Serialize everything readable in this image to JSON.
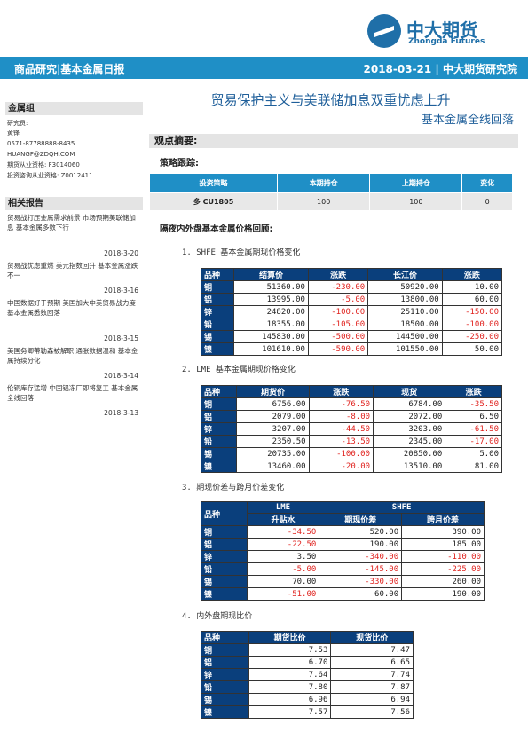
{
  "brand": {
    "cn": "中大期货",
    "en": "Zhongda Futures"
  },
  "header": {
    "left": "商品研究|基本金属日报",
    "right": "2018-03-21 | 中大期货研究院"
  },
  "sidebar": {
    "group_title": "金属组",
    "researcher_label": "研究员:",
    "researcher_name": "黄锋",
    "phone": "0571-87788888-8435",
    "email": "HUANGF@ZDQH.COM",
    "license1": "期货从业资格: F3014060",
    "license2": "投资咨询从业资格: Z0012411",
    "related_title": "相关报告",
    "reports": [
      {
        "title": "贸易战打压金属需求前景 市场预期美联储加息 基本金属多数下行",
        "date": "2018-3-20"
      },
      {
        "title": "贸易战忧虑重燃 美元指数回升 基本金属涨跌不一",
        "date": "2018-3-16"
      },
      {
        "title": "中国数据好于预期 美国加大中美贸易战力度 基本金属悉数回落",
        "date": "2018-3-15"
      },
      {
        "title": "美国务卿蒂勒森被解职 通胀数据温和 基本金属持续分化",
        "date": "2018-3-14"
      },
      {
        "title": "伦铜库存猛增 中国铝冻厂即将复工 基本金属全线回落",
        "date": "2018-3-13"
      }
    ]
  },
  "main": {
    "title": "贸易保护主义与美联储加息双重忧虑上升",
    "subtitle": "基本金属全线回落",
    "section": "观点摘要:",
    "strategy_label": "策略跟踪:",
    "strategy_table": {
      "headers": [
        "投资策略",
        "本期持仓",
        "上期持仓",
        "变化"
      ],
      "rows": [
        [
          "多 CU1805",
          "100",
          "100",
          "0"
        ]
      ]
    },
    "review_label": "隔夜内外盘基本金属价格回顾:",
    "t1": {
      "heading": "1.  SHFE 基本金属期现价格变化",
      "headers": [
        "品种",
        "结算价",
        "涨跌",
        "长江价",
        "涨跌"
      ],
      "rows": [
        [
          "铜",
          "51360.00",
          "-230.00",
          "50920.00",
          "10.00"
        ],
        [
          "铝",
          "13995.00",
          "-5.00",
          "13800.00",
          "60.00"
        ],
        [
          "锌",
          "24820.00",
          "-100.00",
          "25110.00",
          "-150.00"
        ],
        [
          "铅",
          "18355.00",
          "-105.00",
          "18500.00",
          "-100.00"
        ],
        [
          "锡",
          "145830.00",
          "-500.00",
          "144500.00",
          "-250.00"
        ],
        [
          "镍",
          "101610.00",
          "-590.00",
          "101550.00",
          "50.00"
        ]
      ]
    },
    "t2": {
      "heading": "2.  LME  基本金属期现价格变化",
      "headers": [
        "品种",
        "期货价",
        "涨跌",
        "现货",
        "涨跌"
      ],
      "rows": [
        [
          "铜",
          "6756.00",
          "-76.50",
          "6784.00",
          "-35.50"
        ],
        [
          "铝",
          "2079.00",
          "-8.00",
          "2072.00",
          "6.50"
        ],
        [
          "锌",
          "3207.00",
          "-44.50",
          "3203.00",
          "-61.50"
        ],
        [
          "铅",
          "2350.50",
          "-13.50",
          "2345.00",
          "-17.00"
        ],
        [
          "锡",
          "20735.00",
          "-100.00",
          "20850.00",
          "5.00"
        ],
        [
          "镍",
          "13460.00",
          "-20.00",
          "13510.00",
          "81.00"
        ]
      ]
    },
    "t3": {
      "heading": "3.  期现价差与跨月价差变化",
      "group_lme": "LME",
      "group_shfe": "SHFE",
      "cat_header": "品种",
      "headers": [
        "升贴水",
        "期现价差",
        "跨月价差"
      ],
      "rows": [
        [
          "铜",
          "-34.50",
          "520.00",
          "390.00"
        ],
        [
          "铝",
          "-22.50",
          "190.00",
          "185.00"
        ],
        [
          "锌",
          "3.50",
          "-340.00",
          "-110.00"
        ],
        [
          "铅",
          "-5.00",
          "-145.00",
          "-225.00"
        ],
        [
          "锡",
          "70.00",
          "-330.00",
          "260.00"
        ],
        [
          "镍",
          "-51.00",
          "60.00",
          "190.00"
        ]
      ]
    },
    "t4": {
      "heading": "4.  内外盘期现比价",
      "headers": [
        "品种",
        "期货比价",
        "现货比价"
      ],
      "rows": [
        [
          "铜",
          "7.53",
          "7.47"
        ],
        [
          "铝",
          "6.70",
          "6.65"
        ],
        [
          "锌",
          "7.64",
          "7.74"
        ],
        [
          "铅",
          "7.80",
          "7.87"
        ],
        [
          "锡",
          "6.96",
          "6.94"
        ],
        [
          "镍",
          "7.57",
          "7.56"
        ]
      ]
    }
  }
}
